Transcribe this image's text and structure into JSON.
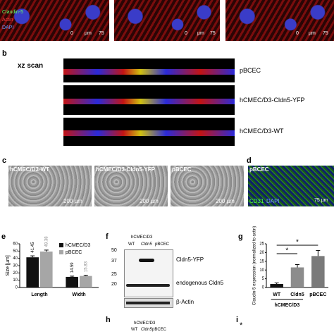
{
  "panel_a": {
    "legend": [
      "Claudin-5",
      "Actin",
      "DAPI"
    ],
    "scale": [
      "0",
      "µm",
      "75"
    ]
  },
  "panel_b": {
    "label": "b",
    "title": "xz scan",
    "rows": [
      "pBCEC",
      "hCMEC/D3-Cldn5-YFP",
      "hCMEC/D3-WT"
    ]
  },
  "panel_c": {
    "label": "c",
    "images": [
      {
        "title": "hCMEC/D3-WT",
        "scale": "200 µm"
      },
      {
        "title": "hCMEC/D3-Cldn5-YFP",
        "scale": "200 µm"
      },
      {
        "title": "pBCEC",
        "scale": "200 µm"
      }
    ]
  },
  "panel_d": {
    "label": "d",
    "title": "pBCEC",
    "stain": [
      "CD31",
      "DAPI"
    ],
    "scale": "75 µm"
  },
  "panel_f": {
    "label": "f",
    "header": "hCMEC/D3",
    "lanes": [
      "WT",
      "Cldn5",
      "pBCEC"
    ],
    "markers": [
      "50",
      "37",
      "25",
      "20"
    ],
    "bands": [
      "Cldn5-YFP",
      "endogenous Cldn5",
      "β-Actin"
    ]
  },
  "panel_h": {
    "label": "h",
    "header": "hCMEC/D3",
    "lanes": [
      "WT",
      "Cldn5",
      "pBCEC"
    ]
  },
  "panel_i": {
    "label": "i",
    "star": "*"
  },
  "chart_data": [
    {
      "type": "bar",
      "panel": "e",
      "ylabel": "Size [µm]",
      "categories": [
        "Length",
        "Width"
      ],
      "series": [
        {
          "name": "hCMEC/D3",
          "color": "#111111",
          "values": [
            41.45,
            14.59
          ],
          "errors": [
            2,
            1
          ]
        },
        {
          "name": "pBCEC",
          "color": "#a6a6a6",
          "values": [
            49.38,
            15.83
          ],
          "errors": [
            2,
            1
          ]
        }
      ],
      "ylim": [
        0,
        60
      ],
      "yticks": [
        0,
        10,
        20,
        30,
        40,
        50,
        60
      ],
      "legend": "top-right"
    },
    {
      "type": "bar",
      "panel": "g",
      "ylabel": "Claudin-5 expression (normalized to actin)",
      "categories": [
        "WT",
        "Cldn5",
        "pBCEC"
      ],
      "group_label": "hCMEC/D3",
      "series": [
        {
          "colors": [
            "#111111",
            "#8c8c8c",
            "#7a7a7a"
          ],
          "values": [
            2,
            11.5,
            18
          ],
          "errors": [
            0.6,
            1.6,
            3.2
          ]
        }
      ],
      "significance": [
        {
          "pair": [
            "WT",
            "Cldn5"
          ],
          "label": "*"
        },
        {
          "pair": [
            "WT",
            "pBCEC"
          ],
          "label": "*"
        }
      ],
      "ylim": [
        0,
        25
      ],
      "yticks": [
        0,
        5,
        10,
        15,
        20,
        25
      ]
    }
  ]
}
